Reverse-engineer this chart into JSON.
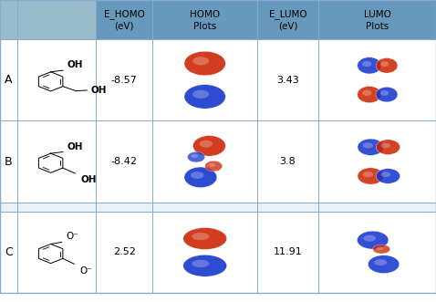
{
  "header_bg": "#6699bb",
  "header_light_bg": "#99bbcc",
  "row_bg": "#ffffff",
  "border_color": "#88aacc",
  "col_headers_line1": [
    "E_HOMO",
    "HOMO",
    "E_LUMO",
    "LUMO"
  ],
  "col_headers_line2": [
    "(eV)",
    "Plots",
    "(eV)",
    "Plots"
  ],
  "rows": [
    {
      "label": "A",
      "e_homo": "-8.57",
      "e_lumo": "3.43"
    },
    {
      "label": "B",
      "e_homo": "-8.42",
      "e_lumo": "3.8"
    },
    {
      "label": "C",
      "e_homo": "2.52",
      "e_lumo": "11.91"
    }
  ],
  "figsize": [
    4.78,
    3.31
  ],
  "dpi": 100,
  "font_size_header": 7.5,
  "font_size_data": 8,
  "font_size_label": 9
}
